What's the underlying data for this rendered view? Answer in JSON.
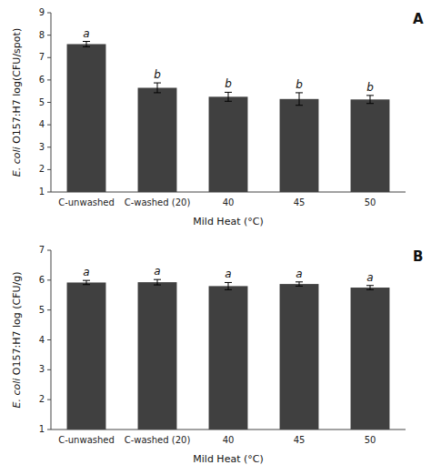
{
  "chart_data": [
    {
      "type": "bar",
      "title": "A",
      "categories": [
        "C-unwashed",
        "C-washed (20)",
        "40",
        "45",
        "50"
      ],
      "values": [
        7.6,
        5.65,
        5.25,
        5.15,
        5.13
      ],
      "errors": [
        0.12,
        0.22,
        0.2,
        0.28,
        0.18
      ],
      "annotations": [
        "a",
        "b",
        "b",
        "b",
        "b"
      ],
      "ylabel": "E. coli O157:H7 log(CFU/spot)",
      "xlabel": "Mild Heat (°C)",
      "color": "#404040",
      "ylim": [
        1,
        9
      ],
      "yticks": [
        1,
        2,
        3,
        4,
        5,
        6,
        7,
        8,
        9
      ]
    },
    {
      "type": "bar",
      "title": "B",
      "categories": [
        "C-unwashed",
        "C-washed (20)",
        "40",
        "45",
        "50"
      ],
      "values": [
        5.92,
        5.93,
        5.8,
        5.87,
        5.75
      ],
      "errors": [
        0.07,
        0.09,
        0.12,
        0.07,
        0.07
      ],
      "annotations": [
        "a",
        "a",
        "a",
        "a",
        "a"
      ],
      "ylabel": "E. coli O157:H7 log (CFU/g)",
      "xlabel": "Mild Heat (°C)",
      "color": "#404040",
      "ylim": [
        1,
        7
      ],
      "yticks": [
        1,
        2,
        3,
        4,
        5,
        6,
        7
      ]
    }
  ]
}
